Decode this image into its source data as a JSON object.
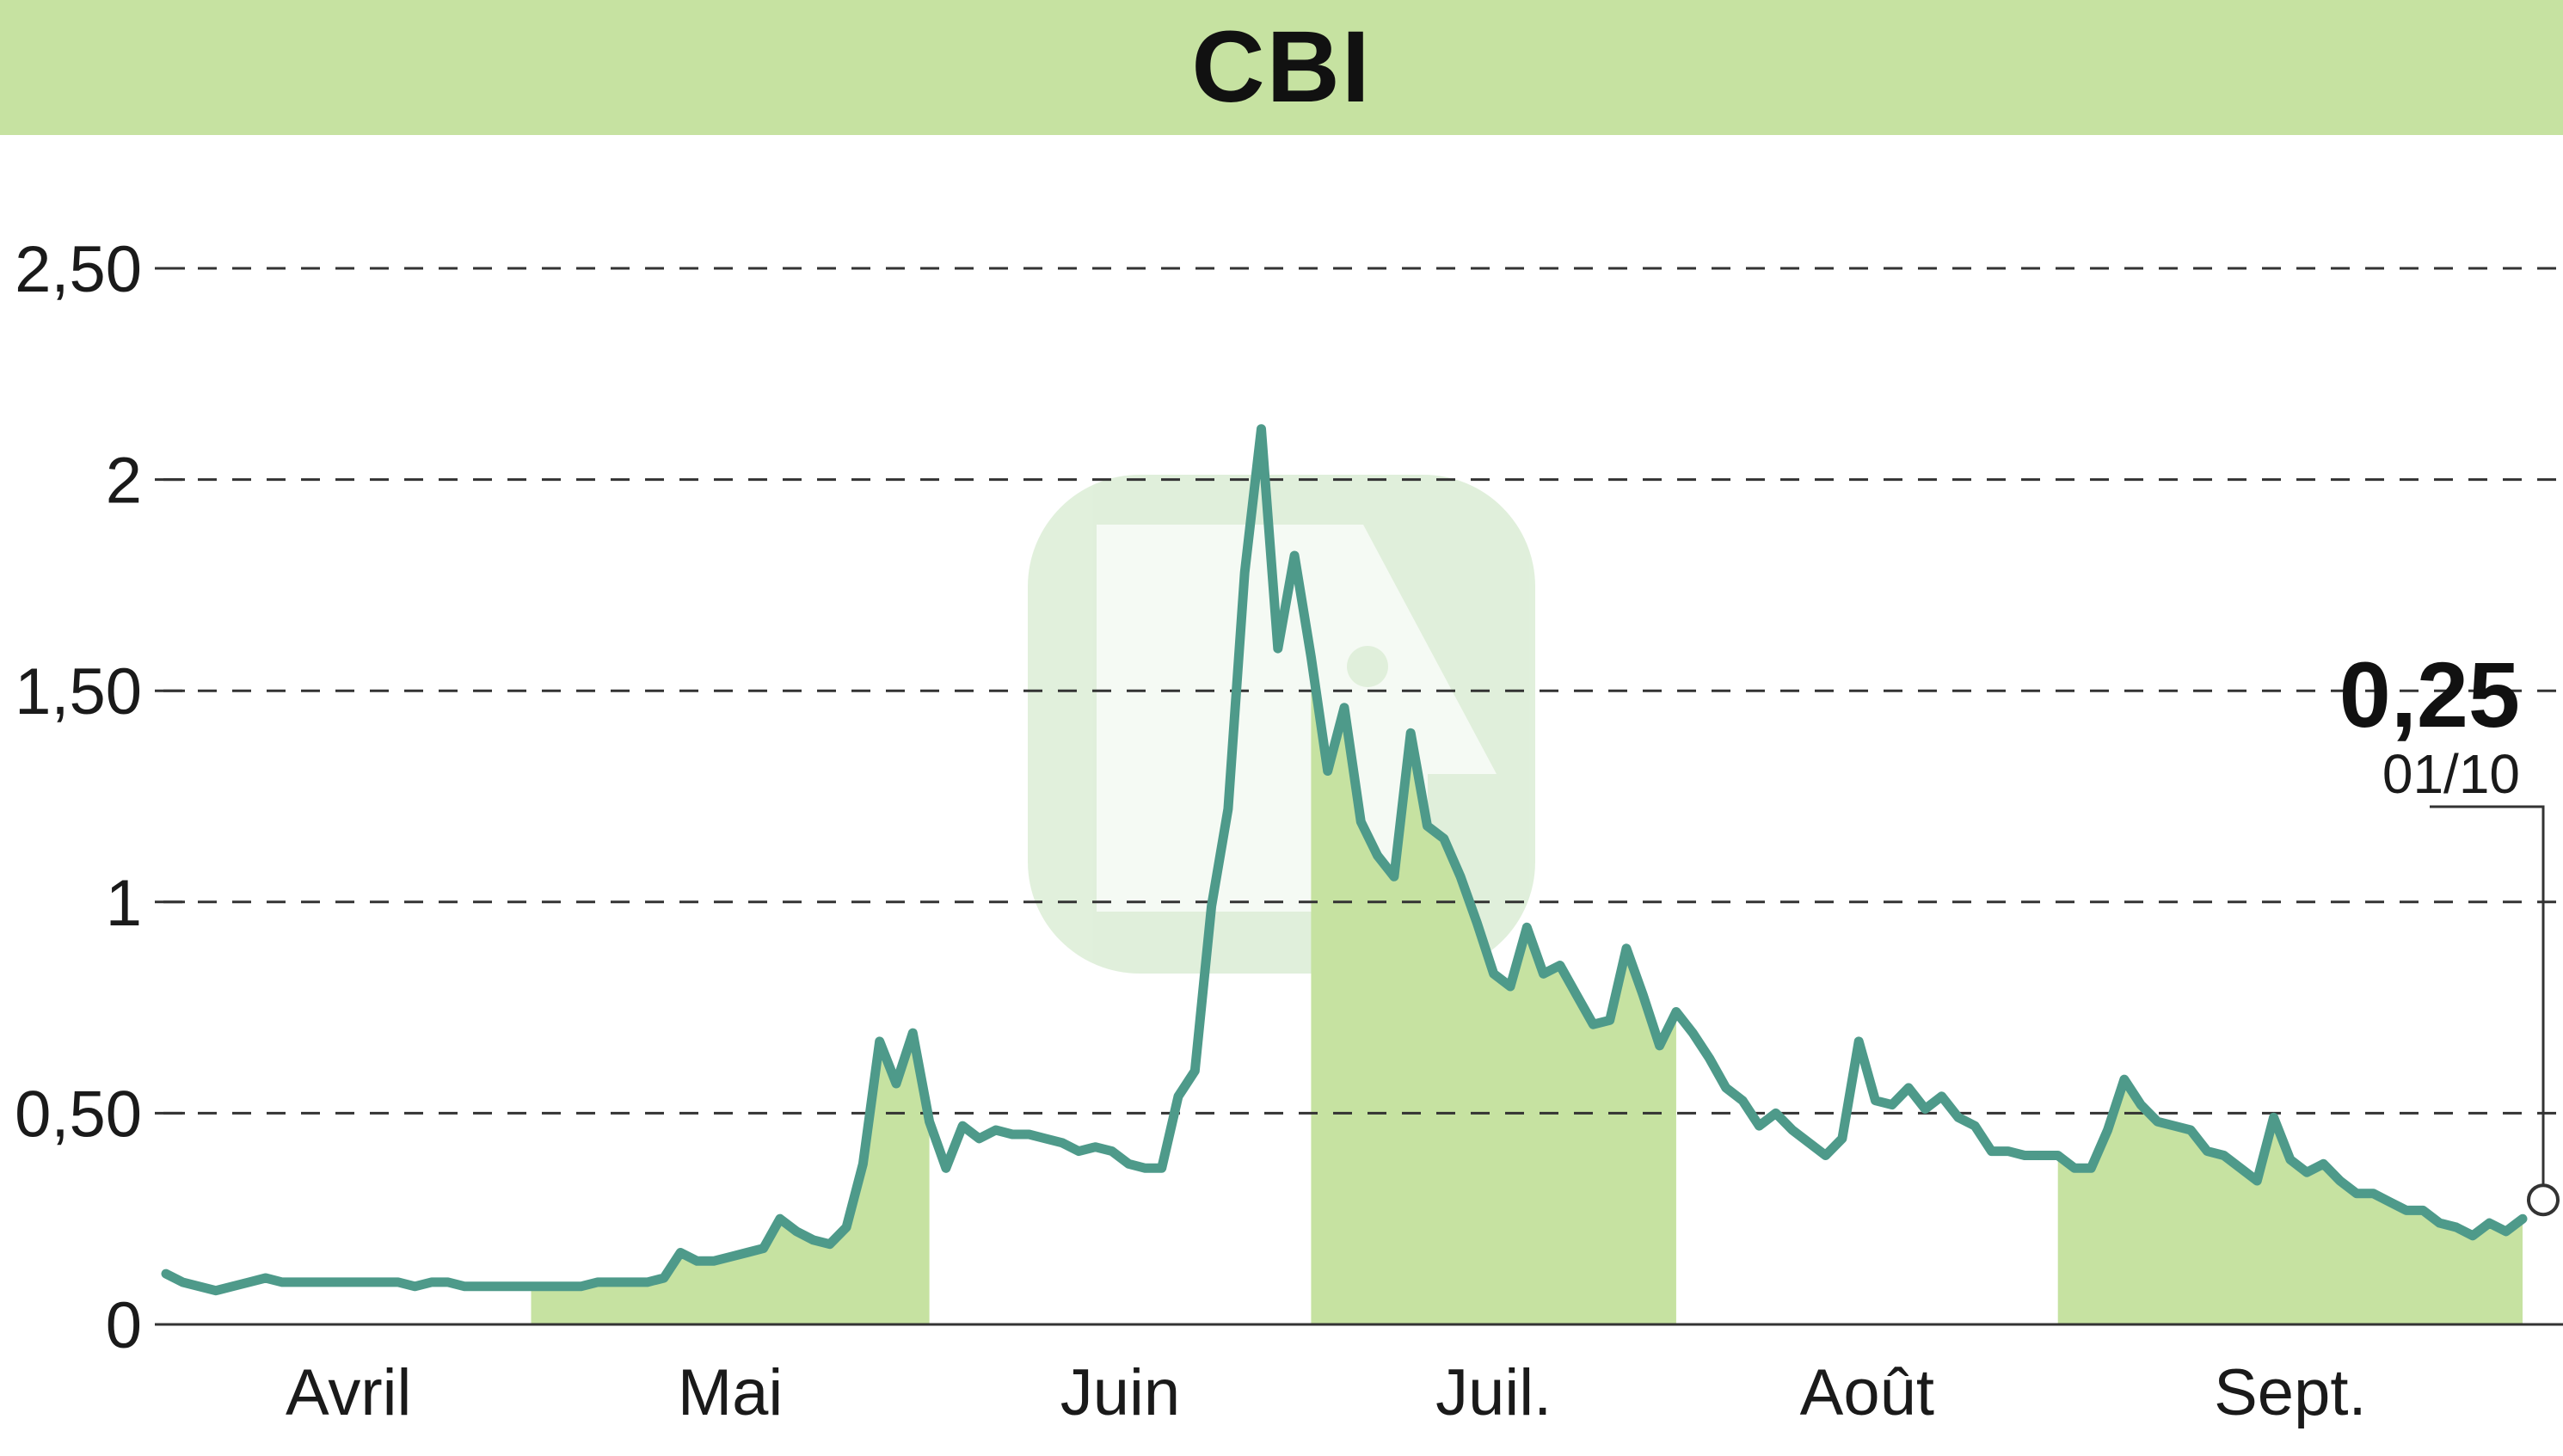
{
  "chart_data": {
    "type": "line",
    "title": "CBI",
    "xlabel": "",
    "ylabel": "",
    "ylim": [
      0,
      2.5
    ],
    "y_ticks": [
      {
        "value": 0,
        "label": "0"
      },
      {
        "value": 0.5,
        "label": "0,50"
      },
      {
        "value": 1,
        "label": "1"
      },
      {
        "value": 1.5,
        "label": "1,50"
      },
      {
        "value": 2,
        "label": "2"
      },
      {
        "value": 2.5,
        "label": "2,50"
      }
    ],
    "months": [
      "Avril",
      "Mai",
      "Juin",
      "Juil.",
      "Août",
      "Sept."
    ],
    "grid": "horizontal dashed",
    "colors": {
      "line": "#4e9a8a",
      "fill": "#c6e2a1",
      "header": "#c6e2a1",
      "text": "#111111"
    },
    "series": [
      {
        "values": [
          0.12,
          0.1,
          0.09,
          0.08,
          0.09,
          0.1,
          0.11,
          0.1,
          0.1,
          0.1,
          0.1,
          0.1,
          0.1,
          0.1,
          0.1,
          0.09,
          0.1,
          0.1,
          0.09,
          0.09,
          0.09,
          0.09,
          0.09,
          0.09,
          0.09,
          0.09,
          0.1,
          0.1,
          0.1,
          0.1,
          0.11,
          0.17,
          0.15,
          0.15,
          0.16,
          0.17,
          0.18,
          0.25,
          0.22,
          0.2,
          0.19,
          0.23,
          0.38,
          0.67,
          0.57,
          0.69,
          0.48,
          0.37,
          0.47,
          0.44,
          0.46,
          0.45,
          0.45,
          0.44,
          0.43,
          0.41,
          0.42,
          0.41,
          0.38,
          0.37,
          0.37,
          0.54,
          0.6,
          0.99,
          1.22,
          1.78,
          2.12,
          1.6,
          1.82,
          1.58,
          1.31,
          1.46,
          1.19,
          1.11,
          1.06,
          1.4,
          1.18,
          1.15,
          1.06,
          0.95,
          0.83,
          0.8,
          0.94,
          0.83,
          0.85,
          0.78,
          0.71,
          0.72,
          0.89,
          0.78,
          0.66,
          0.74,
          0.69,
          0.63,
          0.56,
          0.53,
          0.47,
          0.5,
          0.46,
          0.43,
          0.4,
          0.44,
          0.67,
          0.53,
          0.52,
          0.56,
          0.51,
          0.54,
          0.49,
          0.47,
          0.41,
          0.41,
          0.4,
          0.4,
          0.4,
          0.37,
          0.37,
          0.46,
          0.58,
          0.52,
          0.48,
          0.47,
          0.46,
          0.41,
          0.4,
          0.37,
          0.34,
          0.49,
          0.39,
          0.36,
          0.38,
          0.34,
          0.31,
          0.31,
          0.29,
          0.27,
          0.27,
          0.24,
          0.23,
          0.21,
          0.24,
          0.22,
          0.25
        ],
        "month_start_index": [
          0,
          22,
          46,
          69,
          91,
          114
        ],
        "shaded_months": [
          1,
          3,
          5
        ]
      }
    ],
    "annotations": {
      "last_value": "0,25",
      "last_date": "01/10"
    }
  }
}
